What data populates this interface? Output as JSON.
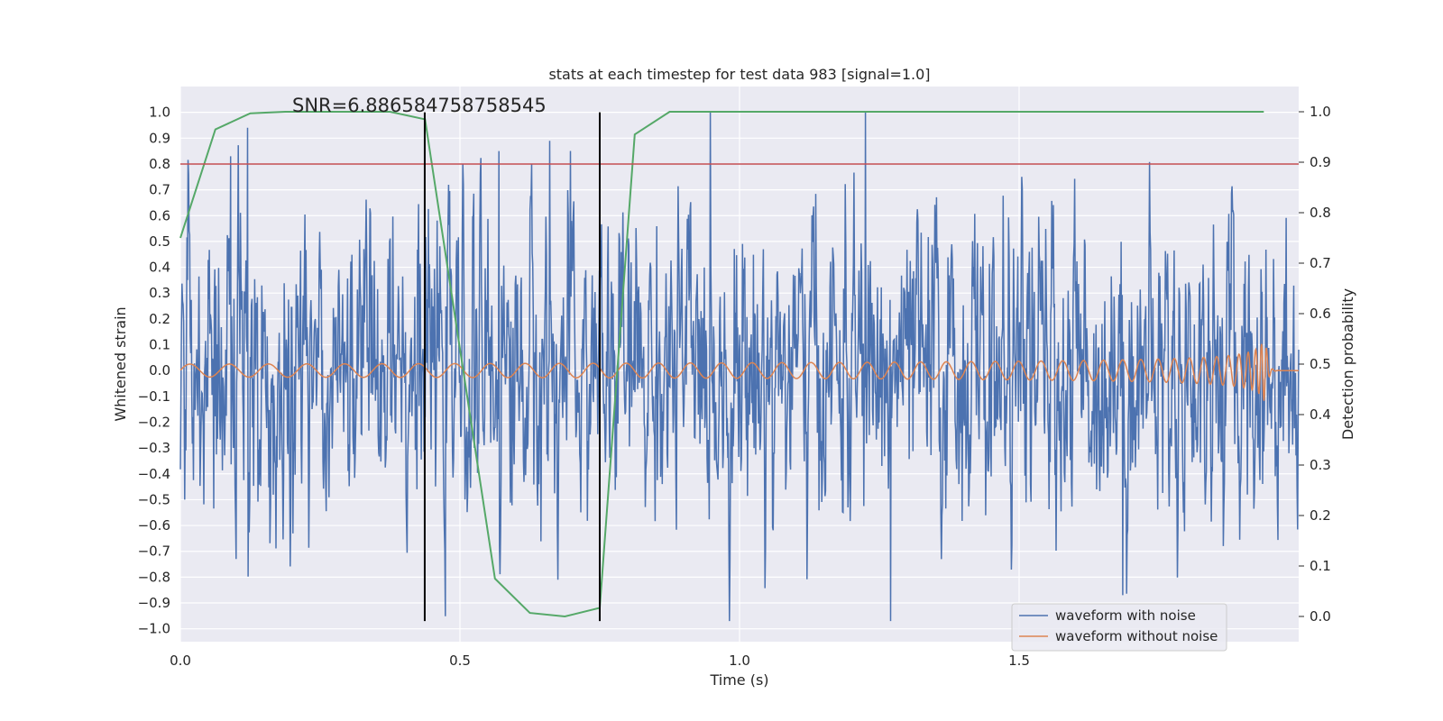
{
  "chart_data": {
    "type": "line",
    "title": "stats at each timestep for test data 983 [signal=1.0]",
    "xlabel": "Time (s)",
    "ylabel_left": "Whitened strain",
    "ylabel_right": "Detection probability",
    "xlim": [
      0.0,
      2.0
    ],
    "ylim_left": [
      -1.05,
      1.1
    ],
    "ylim_right": [
      -0.05,
      1.05
    ],
    "x_ticks": [
      0.0,
      0.5,
      1.0,
      1.5
    ],
    "x_tick_labels": [
      "0.0",
      "0.5",
      "1.0",
      "1.5"
    ],
    "y_left_ticks": [
      1.0,
      0.9,
      0.8,
      0.7,
      0.6,
      0.5,
      0.4,
      0.3,
      0.2,
      0.1,
      0.0,
      -0.1,
      -0.2,
      -0.3,
      -0.4,
      -0.5,
      -0.6,
      -0.7,
      -0.8,
      -0.9,
      -1.0
    ],
    "y_left_tick_labels": [
      "1.0",
      "0.9",
      "0.8",
      "0.7",
      "0.6",
      "0.5",
      "0.4",
      "0.3",
      "0.2",
      "0.1",
      "0.0",
      "−0.1",
      "−0.2",
      "−0.3",
      "−0.4",
      "−0.5",
      "−0.6",
      "−0.7",
      "−0.8",
      "−0.9",
      "−1.0"
    ],
    "y_right_ticks": [
      1.0,
      0.9,
      0.8,
      0.7,
      0.6,
      0.5,
      0.4,
      0.3,
      0.2,
      0.1,
      0.0
    ],
    "y_right_tick_labels": [
      "1.0",
      "0.9",
      "0.8",
      "0.7",
      "0.6",
      "0.5",
      "0.4",
      "0.3",
      "0.2",
      "0.1",
      "0.0"
    ],
    "grid": true,
    "background": "#eaeaf2",
    "annotation": "SNR=6.886584758758545",
    "threshold_line": {
      "y_left": 0.8,
      "color": "#c44e52"
    },
    "vertical_lines": [
      0.437,
      0.75
    ],
    "vertical_line_span_left": [
      -0.97,
      1.0
    ],
    "legend": {
      "placement": "lower-right",
      "entries": [
        {
          "label": "waveform with noise",
          "color": "#4c72b0"
        },
        {
          "label": "waveform without noise",
          "color": "#dd8452"
        }
      ]
    },
    "series": [
      {
        "name": "waveform with noise",
        "color": "#4c72b0",
        "axis": "left",
        "samples": 2048,
        "t_range": [
          0.0,
          2.0
        ],
        "approx_std": 0.22,
        "approx_range": [
          -0.97,
          1.0
        ],
        "notable_peaks": [
          {
            "x": 0.09,
            "y": 0.83
          },
          {
            "x": 0.12,
            "y": 0.94
          },
          {
            "x": 0.57,
            "y": 0.85
          },
          {
            "x": 0.66,
            "y": 0.89
          },
          {
            "x": 1.225,
            "y": 1.0
          },
          {
            "x": 1.27,
            "y": -0.97
          },
          {
            "x": 1.685,
            "y": -0.87
          },
          {
            "x": 0.1,
            "y": -0.73
          }
        ]
      },
      {
        "name": "waveform without noise",
        "color": "#dd8452",
        "axis": "left",
        "kind": "chirp",
        "t_range": [
          0.0,
          2.0
        ],
        "merger_time": 1.94,
        "base_amplitude": 0.025,
        "peak_amplitude": 0.27,
        "start_frequency_hz": 14,
        "end_frequency_hz": 80
      },
      {
        "name": "",
        "color": "#55a868",
        "axis": "right",
        "x": [
          0.0,
          0.0625,
          0.125,
          0.1875,
          0.25,
          0.3125,
          0.375,
          0.4375,
          0.5,
          0.5625,
          0.625,
          0.6875,
          0.75,
          0.8125,
          0.875,
          0.9375,
          1.0,
          1.0625,
          1.125,
          1.1875,
          1.25,
          1.3125,
          1.375,
          1.4375,
          1.5,
          1.5625,
          1.625,
          1.6875,
          1.75,
          1.8125,
          1.875,
          1.9375
        ],
        "y": [
          0.75,
          0.965,
          0.997,
          1.0,
          1.0,
          1.0,
          1.0,
          0.985,
          0.53,
          0.075,
          0.007,
          0.0,
          0.017,
          0.955,
          1.0,
          1.0,
          1.0,
          1.0,
          1.0,
          1.0,
          1.0,
          1.0,
          1.0,
          1.0,
          1.0,
          1.0,
          1.0,
          1.0,
          1.0,
          1.0,
          1.0,
          1.0
        ]
      }
    ]
  }
}
